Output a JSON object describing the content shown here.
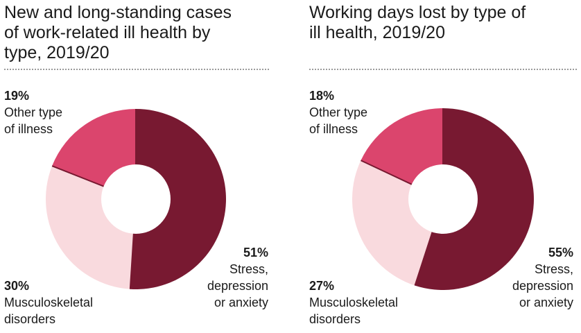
{
  "chart_data": [
    {
      "type": "pie",
      "style": "donut",
      "title": "New and long-standing cases of work-related ill health by type, 2019/20",
      "title_lines": [
        "New and long-standing cases",
        "of work-related ill health by",
        "type, 2019/20"
      ],
      "slices": [
        {
          "label": "Stress, depression or anxiety",
          "label_lines": [
            "Stress,",
            "depression",
            "or anxiety"
          ],
          "value": 51,
          "pct_text": "51%",
          "color": "#781931"
        },
        {
          "label": "Musculoskeletal disorders",
          "label_lines": [
            "Musculoskeletal",
            "disorders"
          ],
          "value": 30,
          "pct_text": "30%",
          "color": "#f9dade"
        },
        {
          "label": "Other type of illness",
          "label_lines": [
            "Other type",
            "of illness"
          ],
          "value": 19,
          "pct_text": "19%",
          "color": "#db456d"
        }
      ]
    },
    {
      "type": "pie",
      "style": "donut",
      "title": "Working days lost by type of ill health, 2019/20",
      "title_lines": [
        "Working days lost by type of",
        "ill health, 2019/20"
      ],
      "slices": [
        {
          "label": "Stress, depression or anxiety",
          "label_lines": [
            "Stress,",
            "depression",
            "or anxiety"
          ],
          "value": 55,
          "pct_text": "55%",
          "color": "#781931"
        },
        {
          "label": "Musculoskeletal disorders",
          "label_lines": [
            "Musculoskeletal",
            "disorders"
          ],
          "value": 27,
          "pct_text": "27%",
          "color": "#f9dade"
        },
        {
          "label": "Other type of illness",
          "label_lines": [
            "Other type",
            "of illness"
          ],
          "value": 18,
          "pct_text": "18%",
          "color": "#db456d"
        }
      ]
    }
  ],
  "separator_color": "#781931",
  "rule_color": "#9a9a9a"
}
